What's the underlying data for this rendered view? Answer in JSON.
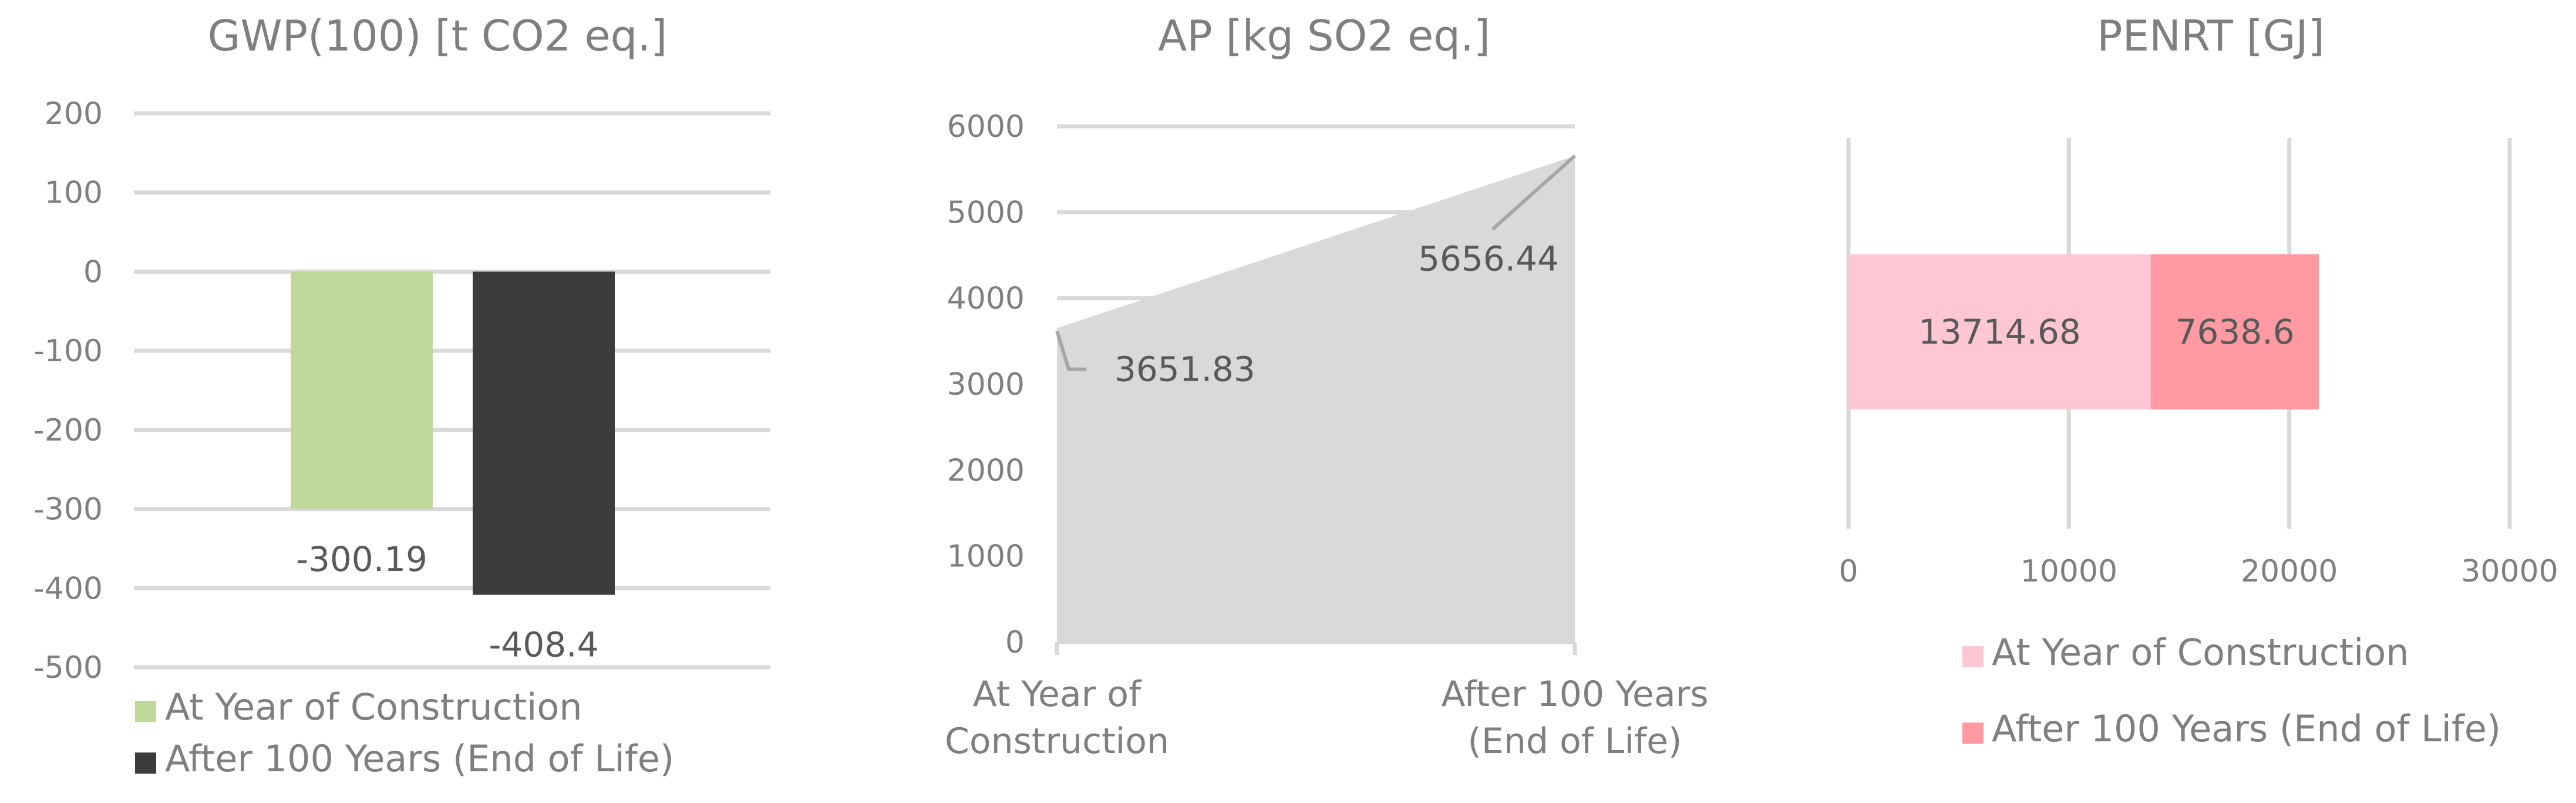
{
  "chart_data": [
    {
      "type": "bar",
      "title": "GWP(100) [t CO2 eq.]",
      "ylim": [
        -500,
        200
      ],
      "yticks": [
        200,
        100,
        0,
        -100,
        -200,
        -300,
        -400,
        -500
      ],
      "series": [
        {
          "name": "At Year of Construction",
          "values": [
            -300.19
          ],
          "label": "-300.19"
        },
        {
          "name": "After 100 Years (End of Life)",
          "values": [
            -408.4
          ],
          "label": "-408.4"
        }
      ],
      "legend_position": "bottom",
      "grid": true,
      "colors": [
        "#bfd99b",
        "#3c3c3c"
      ]
    },
    {
      "type": "area",
      "title": "AP [kg SO2 eq.]",
      "categories": [
        "At Year of Construction",
        "After 100 Years (End of Life)"
      ],
      "category_lines": [
        [
          "At Year of",
          "Construction"
        ],
        [
          "After 100 Years",
          "(End of Life)"
        ]
      ],
      "values": [
        3651.83,
        5656.44
      ],
      "labels": [
        "3651.83",
        "5656.44"
      ],
      "ylim": [
        0,
        6000
      ],
      "yticks": [
        0,
        1000,
        2000,
        3000,
        4000,
        5000,
        6000
      ],
      "grid": true,
      "colors": [
        "#d9d9d9"
      ]
    },
    {
      "type": "bar",
      "orientation": "horizontal",
      "stacked": true,
      "title": "PENRT [GJ]",
      "xlim": [
        0,
        30000
      ],
      "xticks": [
        0,
        10000,
        20000,
        30000
      ],
      "series": [
        {
          "name": "At Year of Construction",
          "values": [
            13714.68
          ],
          "label": "13714.68"
        },
        {
          "name": "After 100 Years (End of Life)",
          "values": [
            7638.6
          ],
          "label": "7638.6"
        }
      ],
      "legend_position": "bottom",
      "grid": true,
      "colors": [
        "#ffc7d3",
        "#ff9aa2"
      ]
    }
  ]
}
